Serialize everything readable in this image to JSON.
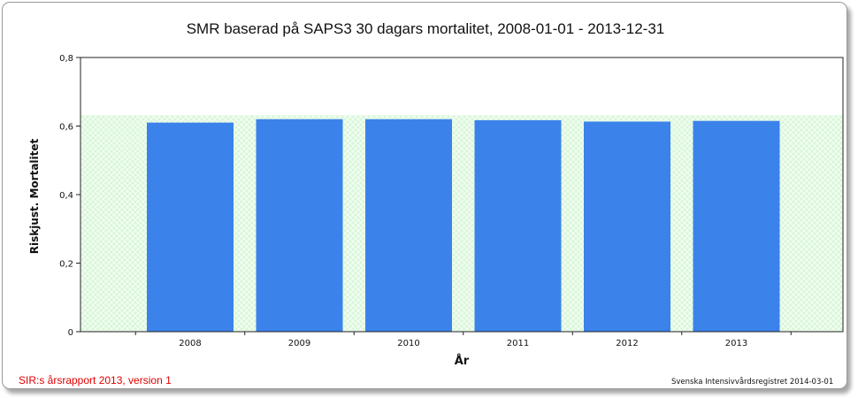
{
  "chart_data": {
    "type": "bar",
    "title": "SMR baserad på SAPS3 30 dagars mortalitet, 2008-01-01 - 2013-12-31",
    "xlabel": "År",
    "ylabel": "Riskjust. Mortalitet",
    "categories": [
      "2008",
      "2009",
      "2010",
      "2011",
      "2012",
      "2013"
    ],
    "values": [
      0.61,
      0.62,
      0.62,
      0.617,
      0.613,
      0.615
    ],
    "ylim": [
      0,
      0.8
    ],
    "yticks": [
      0,
      0.2,
      0.4,
      0.6,
      0.8
    ],
    "ytick_labels": [
      "0",
      "0,2",
      "0,4",
      "0,6",
      "0,8"
    ],
    "reference_band": {
      "from": 0,
      "to": 0.632,
      "color": "#ccf5cc"
    },
    "bar_color": "#3b82eb",
    "grid": false,
    "legend": "none"
  },
  "footer": {
    "left": "SIR:s årsrapport 2013, version 1",
    "right": "Svenska Intensivvårdsregistret 2014-03-01"
  }
}
